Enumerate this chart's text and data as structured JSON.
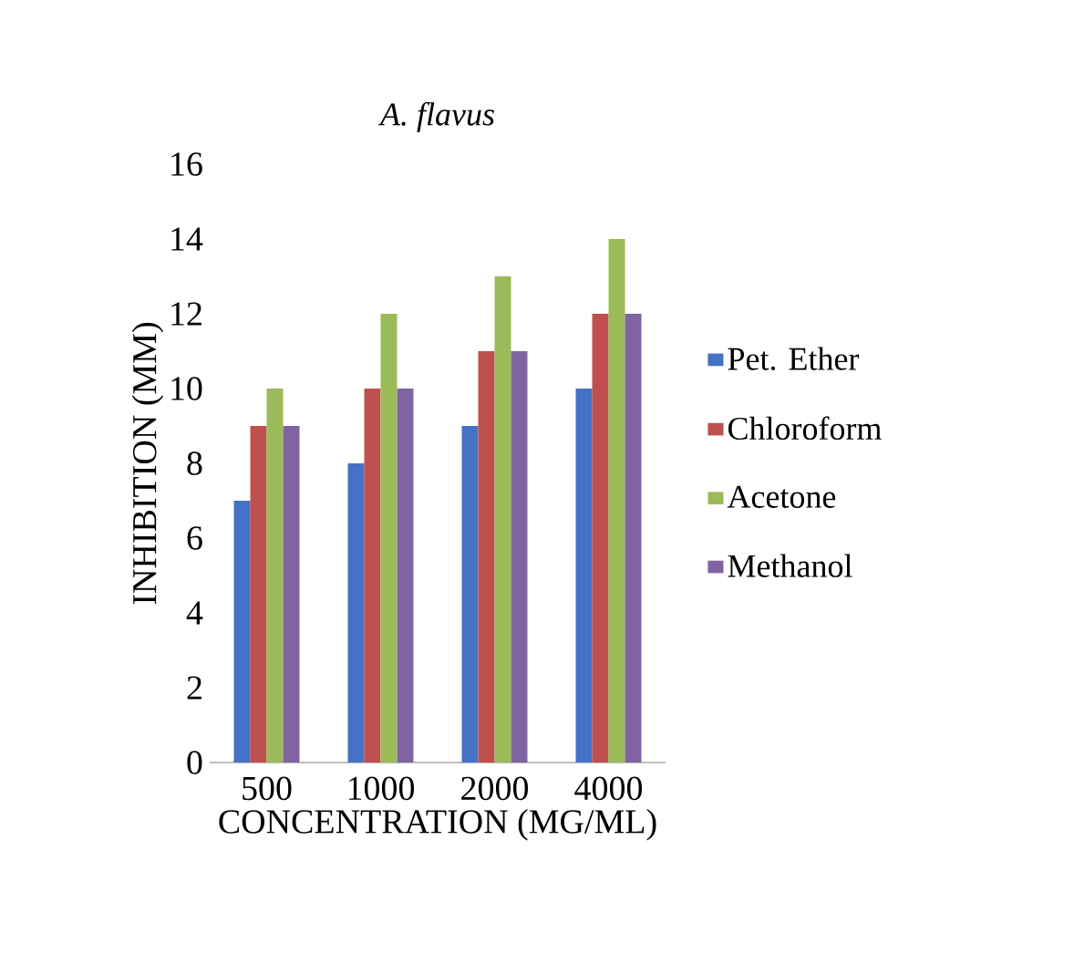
{
  "chart_data": {
    "type": "bar",
    "title": "A. flavus",
    "xlabel": "CONCENTRATION (MG/ML)",
    "ylabel": "INHIBITION (MM)",
    "categories": [
      "500",
      "1000",
      "2000",
      "4000"
    ],
    "series": [
      {
        "name": "Pet. Ether",
        "color": "#4472c4",
        "values": [
          7,
          8,
          9,
          10
        ]
      },
      {
        "name": "Chloroform",
        "color": "#c0504d",
        "values": [
          9,
          10,
          11,
          12
        ]
      },
      {
        "name": "Acetone",
        "color": "#9bbb59",
        "values": [
          10,
          12,
          13,
          14
        ]
      },
      {
        "name": "Methanol",
        "color": "#8064a2",
        "values": [
          9,
          10,
          11,
          12
        ]
      }
    ],
    "ylim": [
      0,
      16
    ],
    "yticks": [
      0,
      2,
      4,
      6,
      8,
      10,
      12,
      14,
      16
    ],
    "grid": false,
    "legend": "right"
  }
}
